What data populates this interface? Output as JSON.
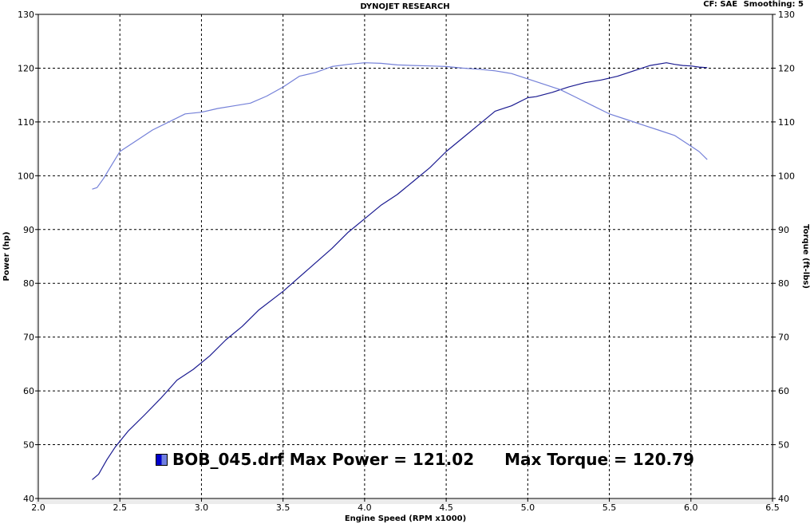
{
  "header": {
    "title": "DYNOJET RESEARCH",
    "cf": "CF: SAE",
    "smoothing": "Smoothing: 5"
  },
  "legend": {
    "filename": "BOB_045.drf",
    "max_power_text": "Max Power = 121.02",
    "max_torque_text": "Max Torque = 120.79"
  },
  "colors": {
    "power": "#1a1a90",
    "torque": "#7480d8",
    "grid": "#000000",
    "plot_bg": "#ffffff",
    "frame_bg": "#ececec"
  },
  "chart_data": {
    "type": "line",
    "title": "DYNOJET RESEARCH",
    "xlabel": "Engine Speed (RPM x1000)",
    "ylabel": "Power (hp)",
    "y2label": "Torque (ft-lbs)",
    "xlim": [
      2.0,
      6.5
    ],
    "ylim": [
      40,
      130
    ],
    "y2lim": [
      40,
      130
    ],
    "xticks": [
      "2.0",
      "2.5",
      "3.0",
      "3.5",
      "4.0",
      "4.5",
      "5.0",
      "5.5",
      "6.0",
      "6.5"
    ],
    "yticks": [
      "40",
      "50",
      "60",
      "70",
      "80",
      "90",
      "100",
      "110",
      "120",
      "130"
    ],
    "grid": true,
    "series": [
      {
        "key": "power",
        "x": [
          2.33,
          2.37,
          2.42,
          2.47,
          2.55,
          2.65,
          2.75,
          2.85,
          2.95,
          3.05,
          3.15,
          3.25,
          3.35,
          3.5,
          3.65,
          3.8,
          3.9,
          4.0,
          4.1,
          4.2,
          4.3,
          4.4,
          4.5,
          4.6,
          4.7,
          4.8,
          4.9,
          5.0,
          5.05,
          5.15,
          5.25,
          5.35,
          5.45,
          5.55,
          5.65,
          5.75,
          5.85,
          5.9,
          5.95,
          6.0,
          6.05,
          6.1
        ],
        "y": [
          43.5,
          44.5,
          47.2,
          49.5,
          52.5,
          55.5,
          58.6,
          62.0,
          64.0,
          66.5,
          69.5,
          72.0,
          75.0,
          78.5,
          82.5,
          86.5,
          89.5,
          92.0,
          94.5,
          96.5,
          99.0,
          101.5,
          104.5,
          107.0,
          109.5,
          112.0,
          113.0,
          114.5,
          114.7,
          115.5,
          116.5,
          117.3,
          117.8,
          118.5,
          119.5,
          120.5,
          121.0,
          120.7,
          120.5,
          120.4,
          120.2,
          120.1
        ]
      },
      {
        "key": "torque",
        "x": [
          2.33,
          2.36,
          2.4,
          2.45,
          2.5,
          2.6,
          2.7,
          2.8,
          2.9,
          3.0,
          3.1,
          3.2,
          3.3,
          3.4,
          3.5,
          3.6,
          3.7,
          3.8,
          3.9,
          4.0,
          4.1,
          4.2,
          4.3,
          4.4,
          4.5,
          4.6,
          4.7,
          4.8,
          4.9,
          5.0,
          5.1,
          5.2,
          5.3,
          5.4,
          5.5,
          5.6,
          5.7,
          5.8,
          5.9,
          6.0,
          6.05,
          6.1
        ],
        "y": [
          97.5,
          97.8,
          99.5,
          102.0,
          104.5,
          106.5,
          108.5,
          110.0,
          111.5,
          111.8,
          112.5,
          113.0,
          113.5,
          114.8,
          116.5,
          118.5,
          119.2,
          120.3,
          120.7,
          121.0,
          120.9,
          120.6,
          120.5,
          120.4,
          120.3,
          120.0,
          119.8,
          119.5,
          119.0,
          118.0,
          117.0,
          116.0,
          114.5,
          113.0,
          111.5,
          110.5,
          109.5,
          108.5,
          107.5,
          105.5,
          104.5,
          103.0
        ]
      }
    ]
  }
}
